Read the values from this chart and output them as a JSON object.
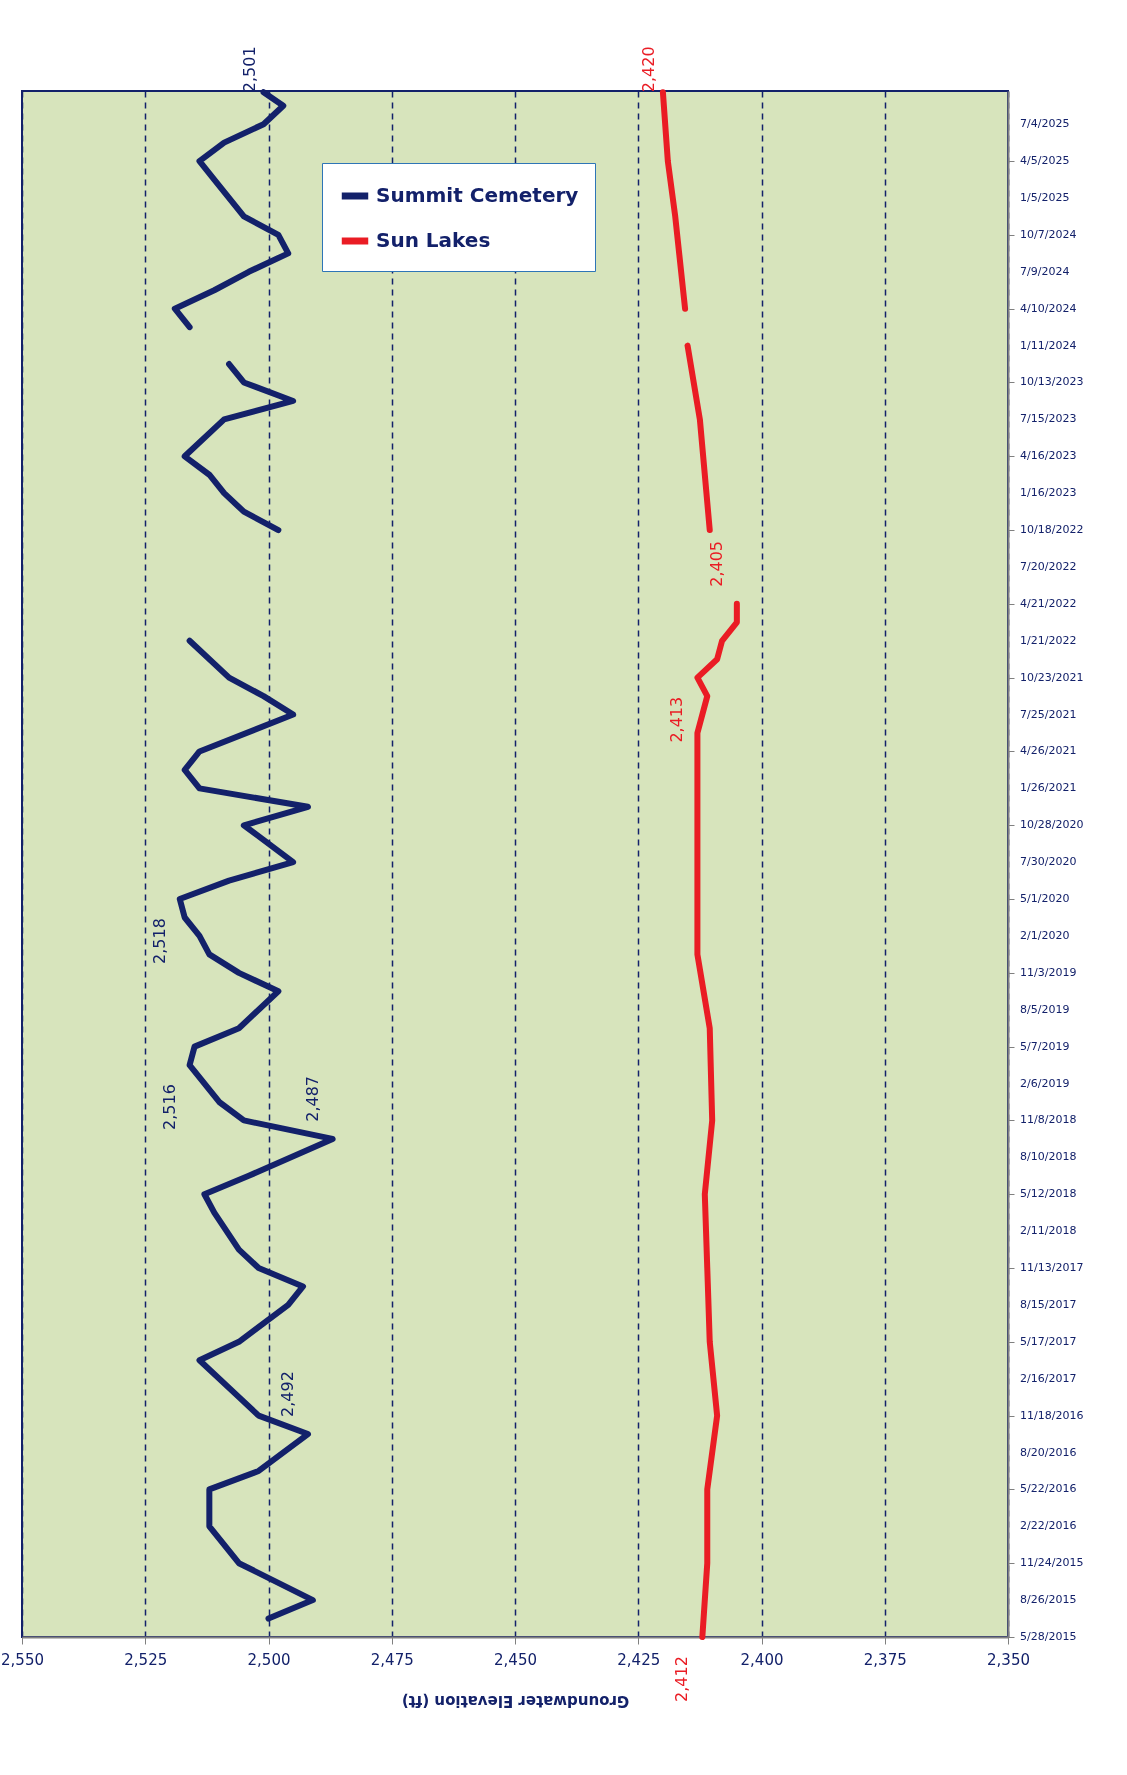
{
  "chart_data": {
    "type": "line",
    "orientation": "horizontal",
    "xlabel": "Groundwater Elevation (ft)",
    "ylim": [
      "2015-05-28",
      "2025-09-23"
    ],
    "yticks": [
      {
        "value": "2015-05-28",
        "label": "5/28/2015"
      },
      {
        "value": "2015-08-26",
        "label": "8/26/2015"
      },
      {
        "value": "2015-11-24",
        "label": "11/24/2015"
      },
      {
        "value": "2016-02-22",
        "label": "2/22/2016"
      },
      {
        "value": "2016-05-22",
        "label": "5/22/2016"
      },
      {
        "value": "2016-08-20",
        "label": "8/20/2016"
      },
      {
        "value": "2016-11-18",
        "label": "11/18/2016"
      },
      {
        "value": "2017-02-16",
        "label": "2/16/2017"
      },
      {
        "value": "2017-05-17",
        "label": "5/17/2017"
      },
      {
        "value": "2017-08-15",
        "label": "8/15/2017"
      },
      {
        "value": "2017-11-13",
        "label": "11/13/2017"
      },
      {
        "value": "2018-02-11",
        "label": "2/11/2018"
      },
      {
        "value": "2018-05-12",
        "label": "5/12/2018"
      },
      {
        "value": "2018-08-10",
        "label": "8/10/2018"
      },
      {
        "value": "2018-11-08",
        "label": "11/8/2018"
      },
      {
        "value": "2019-02-06",
        "label": "2/6/2019"
      },
      {
        "value": "2019-05-07",
        "label": "5/7/2019"
      },
      {
        "value": "2019-08-05",
        "label": "8/5/2019"
      },
      {
        "value": "2019-11-03",
        "label": "11/3/2019"
      },
      {
        "value": "2020-02-01",
        "label": "2/1/2020"
      },
      {
        "value": "2020-05-01",
        "label": "5/1/2020"
      },
      {
        "value": "2020-07-30",
        "label": "7/30/2020"
      },
      {
        "value": "2020-10-28",
        "label": "10/28/2020"
      },
      {
        "value": "2021-01-26",
        "label": "1/26/2021"
      },
      {
        "value": "2021-04-26",
        "label": "4/26/2021"
      },
      {
        "value": "2021-07-25",
        "label": "7/25/2021"
      },
      {
        "value": "2021-10-23",
        "label": "10/23/2021"
      },
      {
        "value": "2022-01-21",
        "label": "1/21/2022"
      },
      {
        "value": "2022-04-21",
        "label": "4/21/2022"
      },
      {
        "value": "2022-07-20",
        "label": "7/20/2022"
      },
      {
        "value": "2022-10-18",
        "label": "10/18/2022"
      },
      {
        "value": "2023-01-16",
        "label": "1/16/2023"
      },
      {
        "value": "2023-04-16",
        "label": "4/16/2023"
      },
      {
        "value": "2023-07-15",
        "label": "7/15/2023"
      },
      {
        "value": "2023-10-13",
        "label": "10/13/2023"
      },
      {
        "value": "2024-01-11",
        "label": "1/11/2024"
      },
      {
        "value": "2024-04-10",
        "label": "4/10/2024"
      },
      {
        "value": "2024-07-09",
        "label": "7/9/2024"
      },
      {
        "value": "2024-10-07",
        "label": "10/7/2024"
      },
      {
        "value": "2025-01-05",
        "label": "1/5/2025"
      },
      {
        "value": "2025-04-05",
        "label": "4/5/2025"
      },
      {
        "value": "2025-07-04",
        "label": "7/4/2025"
      }
    ],
    "xlim": [
      2550,
      2350
    ],
    "xticks": [
      {
        "value": 2350,
        "label": "2,350"
      },
      {
        "value": 2375,
        "label": "2,375"
      },
      {
        "value": 2400,
        "label": "2,400"
      },
      {
        "value": 2425,
        "label": "2,425"
      },
      {
        "value": 2450,
        "label": "2,450"
      },
      {
        "value": 2475,
        "label": "2,475"
      },
      {
        "value": 2500,
        "label": "2,500"
      },
      {
        "value": 2525,
        "label": "2,525"
      },
      {
        "value": 2550,
        "label": "2,550"
      }
    ],
    "grid": "x",
    "legend": "top",
    "series": [
      {
        "name": "Summit Cemetery",
        "color": "#13216a",
        "x": [
          "2015-07-12",
          "2015-08-26",
          "2015-11-24",
          "2016-02-22",
          "2016-05-22",
          "2016-07-06",
          "2016-10-04",
          "2016-11-18",
          "2017-01-02",
          "2017-04-02",
          "2017-05-17",
          "2017-08-15",
          "2017-09-29",
          "2017-11-13",
          "2017-12-28",
          "2018-03-28",
          "2018-05-12",
          "2018-06-26",
          "2018-09-24",
          "2018-11-08",
          "2018-12-23",
          "2019-03-23",
          "2019-05-07",
          "2019-06-21",
          "2019-09-19",
          "2019-11-03",
          "2019-12-18",
          "2020-02-01",
          "2020-03-17",
          "2020-05-01",
          "2020-06-15",
          "2020-07-30",
          "2020-09-13",
          "2020-10-28",
          "2020-12-12",
          "2021-01-26",
          "2021-03-12",
          "2021-04-26",
          "2021-07-25",
          "2021-09-08",
          "2021-10-23",
          "2022-01-21",
          "2022-06-05",
          "2022-10-18",
          "2022-12-02",
          "2023-01-16",
          "2023-03-02",
          "2023-04-16",
          "2023-07-15",
          "2023-08-29",
          "2023-10-13",
          "2023-11-27",
          "2023-12-20",
          "2024-02-25",
          "2024-04-10",
          "2024-05-25",
          "2024-07-09",
          "2024-08-23",
          "2024-10-07",
          "2024-11-21",
          "2025-02-19",
          "2025-04-05",
          "2025-05-20",
          "2025-07-04",
          "2025-08-18",
          "2025-09-20"
        ],
        "values": [
          2500,
          2491,
          2506,
          2512,
          2512,
          2502,
          2492,
          2502,
          2506,
          2514,
          2506,
          2496,
          2493,
          2502,
          2506,
          2511,
          2513,
          2504,
          2487,
          2505,
          2510,
          2516,
          2515,
          2506,
          2498,
          2506,
          2512,
          2514,
          2517,
          2518,
          2508,
          2495,
          2500,
          2505,
          2492,
          2514,
          2517,
          2514,
          2495,
          2501,
          2508,
          2516,
          null,
          2498,
          2505,
          2509,
          2512,
          2517,
          2509,
          2495,
          2505,
          2508,
          null,
          2516,
          2519,
          2511,
          2504,
          2496,
          2498,
          2505,
          2511,
          2514,
          2509,
          2501,
          2497,
          2501
        ]
      },
      {
        "name": "Sun Lakes",
        "color": "#ea1c24",
        "x": [
          "2015-05-28",
          "2015-11-24",
          "2016-05-22",
          "2016-11-18",
          "2017-05-17",
          "2017-11-13",
          "2018-05-12",
          "2018-11-08",
          "2019-06-21",
          "2019-12-18",
          "2020-05-01",
          "2020-12-12",
          "2021-06-10",
          "2021-09-08",
          "2021-10-23",
          "2021-12-07",
          "2022-01-21",
          "2022-03-07",
          "2022-04-21",
          "2022-07-20",
          "2022-10-18",
          "2023-07-15",
          "2024-01-11",
          "2024-02-10",
          "2024-04-10",
          "2024-11-21",
          "2025-04-05",
          "2025-09-20"
        ],
        "values": [
          2412,
          2411,
          2411,
          2409,
          2410.5,
          2411,
          2411.5,
          2410,
          2410.5,
          2413,
          2413,
          2413,
          2413,
          2411,
          2413,
          2409,
          2408,
          2405,
          2405,
          null,
          2410.5,
          2412.5,
          2415,
          null,
          2415.5,
          2417.5,
          2419,
          2420
        ]
      }
    ],
    "annotations": [
      {
        "text": "2,492",
        "y": "2016-10-04",
        "x": 2492
      },
      {
        "text": "2,487",
        "y": "2018-09-24",
        "x": 2487
      },
      {
        "text": "2,516",
        "y": "2019-03-23",
        "x": 2516
      },
      {
        "text": "2,518",
        "y": "2020-05-01",
        "x": 2518
      },
      {
        "text": "2,501",
        "y": "2025-09-20",
        "x": 2501
      },
      {
        "text": "2,412",
        "y": "2015-05-28",
        "x": 2412
      },
      {
        "text": "2,413",
        "y": "2021-10-23",
        "x": 2413
      },
      {
        "text": "2,405",
        "y": "2022-04-21",
        "x": 2405
      },
      {
        "text": "2,420",
        "y": "2025-09-20",
        "x": 2420
      }
    ]
  }
}
